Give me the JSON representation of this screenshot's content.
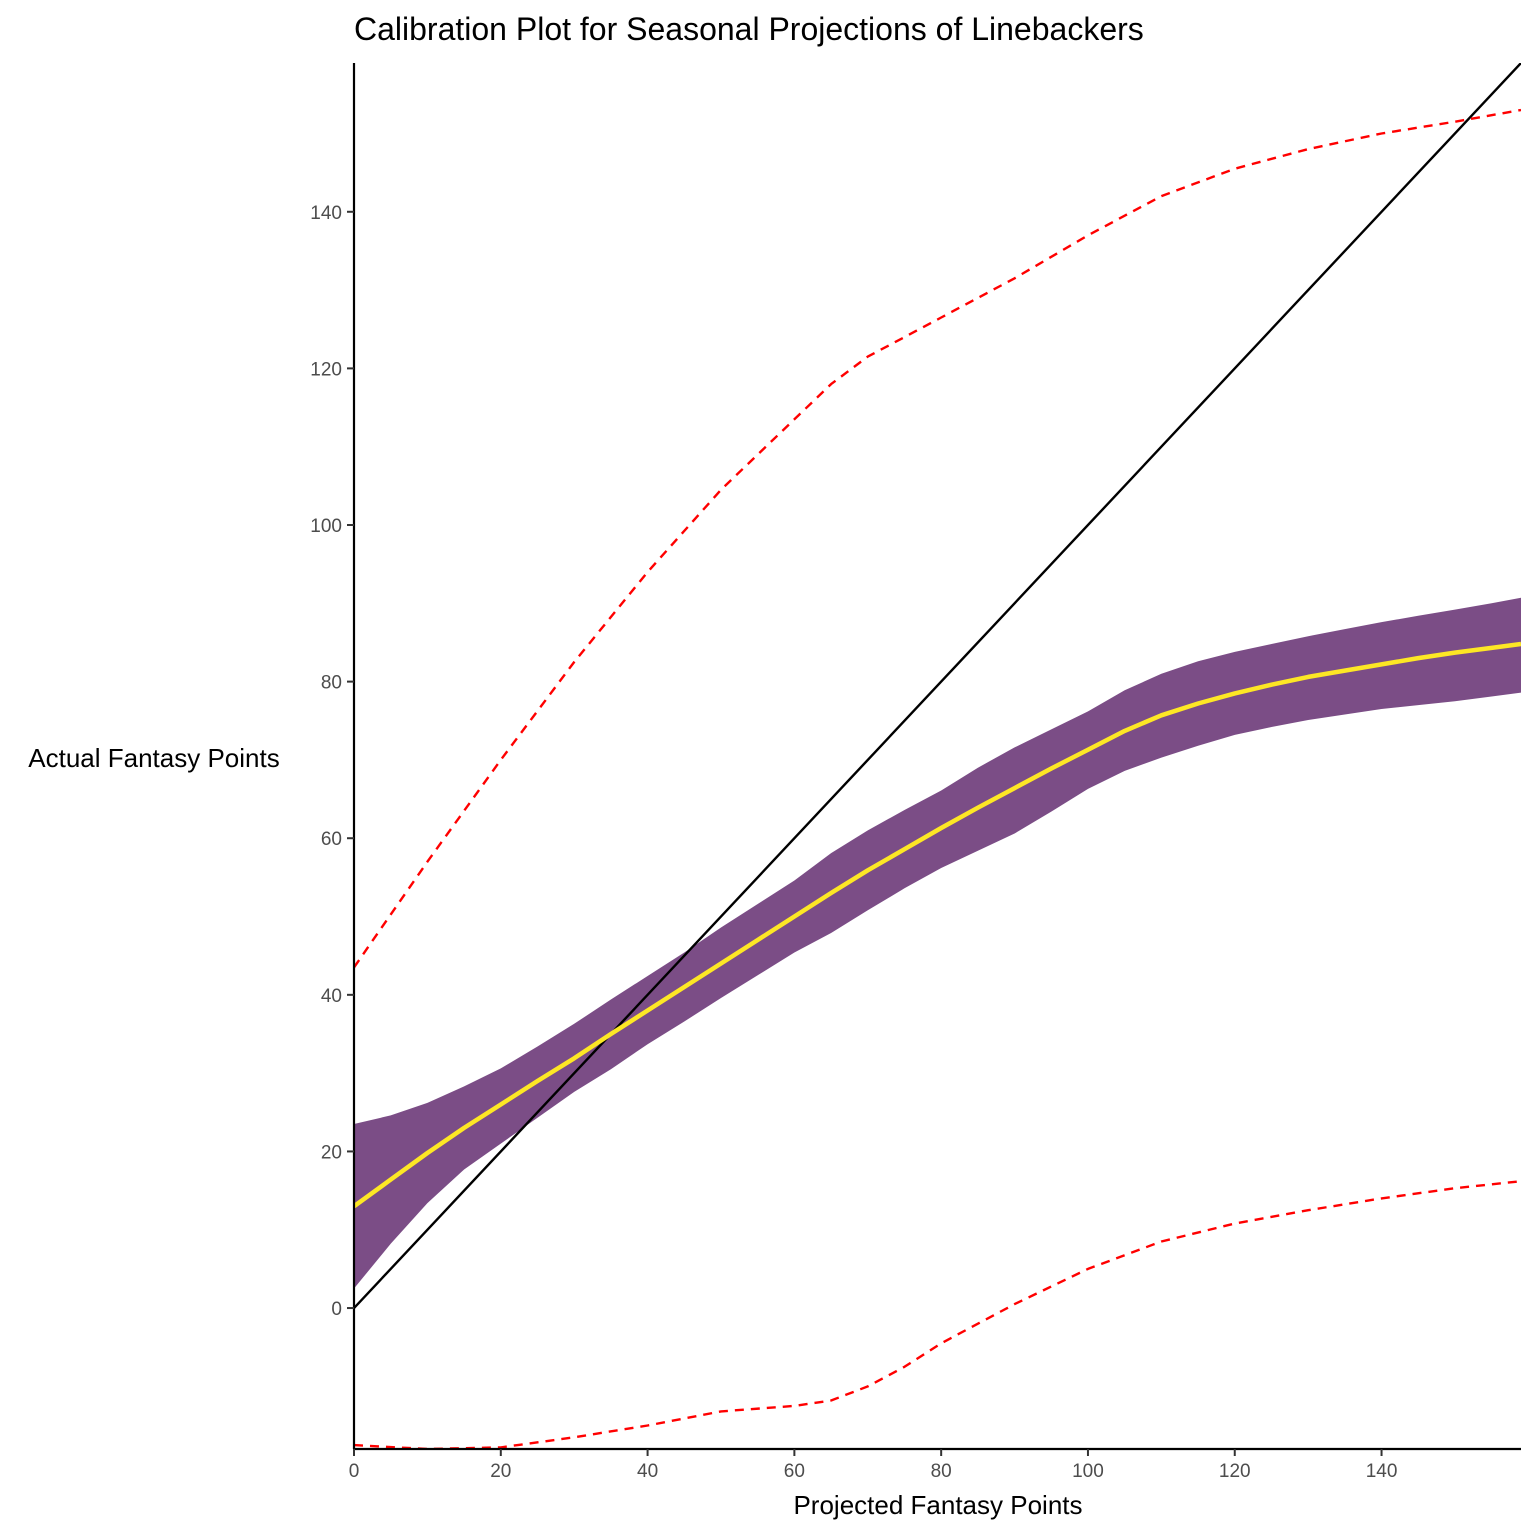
{
  "chart_data": {
    "type": "line",
    "title": "Calibration Plot for Seasonal Projections of Linebackers",
    "xlabel": "Projected Fantasy Points",
    "ylabel": "Actual Fantasy Points",
    "xlim": [
      0,
      159
    ],
    "ylim": [
      -18,
      159
    ],
    "x_ticks": [
      0,
      20,
      40,
      60,
      80,
      100,
      120,
      140
    ],
    "y_ticks": [
      0,
      20,
      40,
      60,
      80,
      100,
      120,
      140
    ],
    "grid": false,
    "legend": "none",
    "series": [
      {
        "role": "reference-identity-line",
        "color": "#000000",
        "style": "solid",
        "x": [
          0,
          159
        ],
        "y": [
          0,
          159
        ]
      },
      {
        "role": "confidence-band",
        "color": "#7b4d86",
        "style": "fill",
        "x": [
          0,
          5,
          10,
          15,
          20,
          25,
          30,
          35,
          40,
          45,
          50,
          55,
          60,
          65,
          70,
          75,
          80,
          85,
          90,
          95,
          100,
          105,
          110,
          115,
          120,
          125,
          130,
          135,
          140,
          145,
          150,
          155,
          159
        ],
        "upper": [
          23.5,
          24.6,
          26.2,
          28.3,
          30.6,
          33.4,
          36.3,
          39.4,
          42.4,
          45.4,
          48.6,
          51.6,
          54.6,
          58.1,
          61.0,
          63.6,
          66.1,
          69.0,
          71.6,
          73.9,
          76.2,
          78.9,
          81.0,
          82.6,
          83.8,
          84.8,
          85.8,
          86.7,
          87.6,
          88.4,
          89.2,
          90.0,
          90.7
        ],
        "lower": [
          2.5,
          8.2,
          13.4,
          17.7,
          21.0,
          24.3,
          27.6,
          30.5,
          33.7,
          36.6,
          39.6,
          42.5,
          45.4,
          47.9,
          50.8,
          53.6,
          56.2,
          58.4,
          60.6,
          63.4,
          66.3,
          68.6,
          70.3,
          71.8,
          73.2,
          74.2,
          75.1,
          75.8,
          76.5,
          77.0,
          77.5,
          78.1,
          78.6
        ]
      },
      {
        "role": "fitted-line",
        "color": "#fde725",
        "style": "solid",
        "x": [
          0,
          5,
          10,
          15,
          20,
          25,
          30,
          35,
          40,
          45,
          50,
          55,
          60,
          65,
          70,
          75,
          80,
          85,
          90,
          95,
          100,
          105,
          110,
          115,
          120,
          125,
          130,
          135,
          140,
          145,
          150,
          155,
          159
        ],
        "y": [
          13.0,
          16.4,
          19.8,
          23.0,
          26.0,
          29.0,
          31.9,
          35.0,
          38.0,
          41.0,
          44.0,
          47.0,
          50.0,
          53.0,
          55.9,
          58.6,
          61.3,
          63.9,
          66.4,
          68.9,
          71.3,
          73.7,
          75.7,
          77.2,
          78.5,
          79.6,
          80.6,
          81.4,
          82.2,
          83.0,
          83.7,
          84.3,
          84.8
        ]
      },
      {
        "role": "prediction-interval-upper",
        "color": "#ff0000",
        "style": "dashed",
        "x": [
          0,
          10,
          20,
          30,
          40,
          50,
          60,
          65,
          70,
          75,
          80,
          90,
          100,
          110,
          120,
          130,
          140,
          150,
          159
        ],
        "y": [
          43.5,
          57.0,
          70.0,
          82.5,
          94.0,
          104.5,
          113.5,
          118.0,
          121.5,
          124.0,
          126.5,
          131.5,
          137.0,
          142.0,
          145.5,
          148.0,
          150.0,
          151.5,
          153.0
        ]
      },
      {
        "role": "prediction-interval-lower",
        "color": "#ff0000",
        "style": "dashed",
        "x": [
          0,
          10,
          20,
          30,
          40,
          50,
          60,
          65,
          70,
          75,
          80,
          90,
          100,
          110,
          120,
          130,
          140,
          150,
          159
        ],
        "y": [
          -17.5,
          -18.0,
          -17.8,
          -16.5,
          -15.0,
          -13.2,
          -12.5,
          -11.8,
          -10.0,
          -7.5,
          -4.5,
          0.5,
          5.0,
          8.5,
          10.8,
          12.5,
          14.0,
          15.3,
          16.2
        ]
      }
    ]
  }
}
